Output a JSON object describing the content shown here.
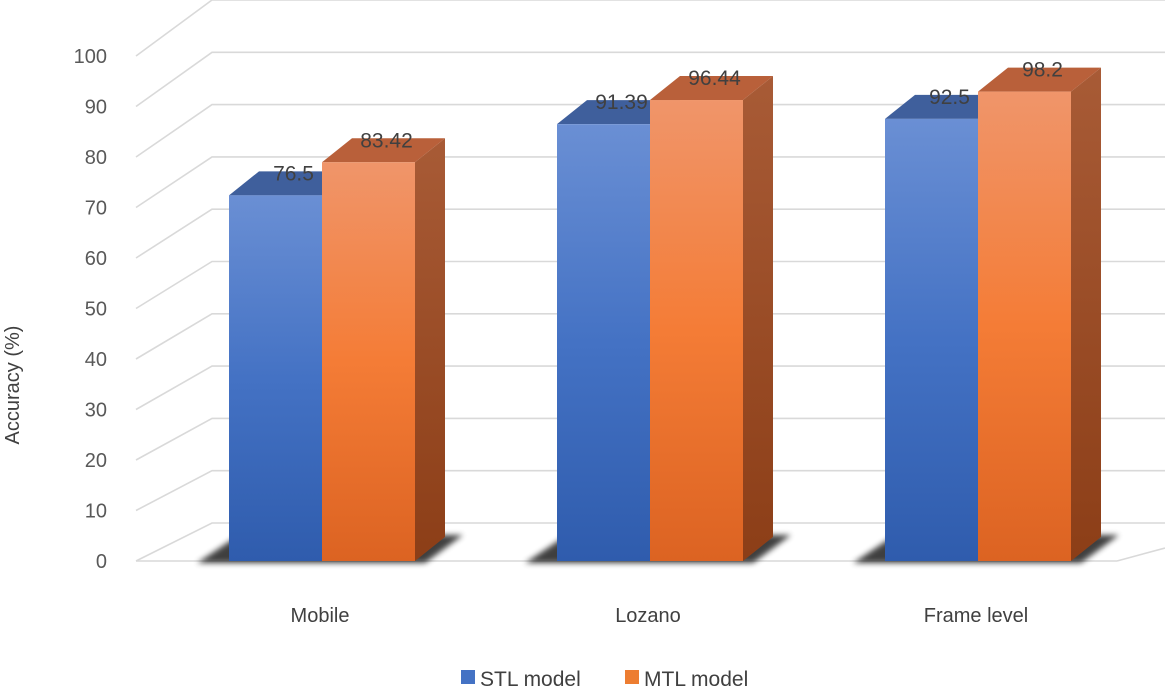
{
  "chart_data": {
    "type": "bar",
    "title": "",
    "xlabel": "",
    "ylabel": "Accuracy (%)",
    "ylim": [
      0,
      100
    ],
    "yticks": [
      0,
      10,
      20,
      30,
      40,
      50,
      60,
      70,
      80,
      90,
      100
    ],
    "categories": [
      "Mobile",
      "Lozano",
      "Frame level"
    ],
    "series": [
      {
        "name": "STL model",
        "values": [
          76.5,
          91.39,
          92.5
        ],
        "labels": [
          "76.5",
          "91.39",
          "92.5"
        ],
        "color": "#4472c4"
      },
      {
        "name": "MTL model",
        "values": [
          83.42,
          96.44,
          98.2
        ],
        "labels": [
          "83.42",
          "96.44",
          "98.2"
        ],
        "color": "#ed7d31"
      }
    ],
    "grid": true,
    "legend": "bottom",
    "style": "3d-clustered-column"
  }
}
